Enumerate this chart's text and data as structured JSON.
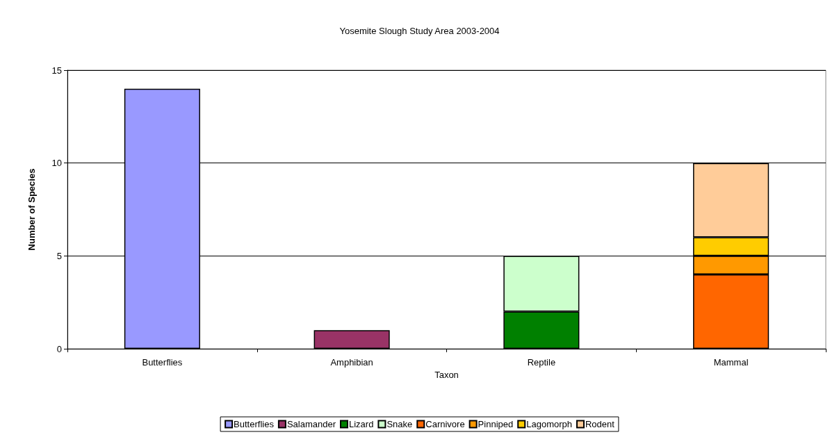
{
  "chart_data": {
    "type": "bar",
    "title": "Yosemite Slough Study Area 2003-2004",
    "xlabel": "Taxon",
    "ylabel": "Number of Species",
    "categories": [
      "Butterflies",
      "Amphibian",
      "Reptile",
      "Mammal"
    ],
    "stacked": true,
    "series": [
      {
        "name": "Butterflies",
        "color": "#9999ff",
        "values": [
          14,
          null,
          null,
          null
        ]
      },
      {
        "name": "Salamander",
        "color": "#993366",
        "values": [
          null,
          1,
          null,
          null
        ]
      },
      {
        "name": "Lizard",
        "color": "#008000",
        "values": [
          null,
          null,
          2,
          null
        ]
      },
      {
        "name": "Snake",
        "color": "#ccffcc",
        "values": [
          null,
          null,
          3,
          null
        ]
      },
      {
        "name": "Carnivore",
        "color": "#ff6600",
        "values": [
          null,
          null,
          null,
          4
        ]
      },
      {
        "name": "Pinniped",
        "color": "#ff9900",
        "values": [
          null,
          null,
          null,
          1
        ]
      },
      {
        "name": "Lagomorph",
        "color": "#ffcc00",
        "values": [
          null,
          null,
          null,
          1
        ]
      },
      {
        "name": "Rodent",
        "color": "#ffcc99",
        "values": [
          null,
          null,
          null,
          4
        ]
      }
    ],
    "ylim": [
      0,
      15
    ],
    "yticks": [
      0,
      5,
      10,
      15
    ],
    "grid": "y",
    "legend": "bottom"
  }
}
